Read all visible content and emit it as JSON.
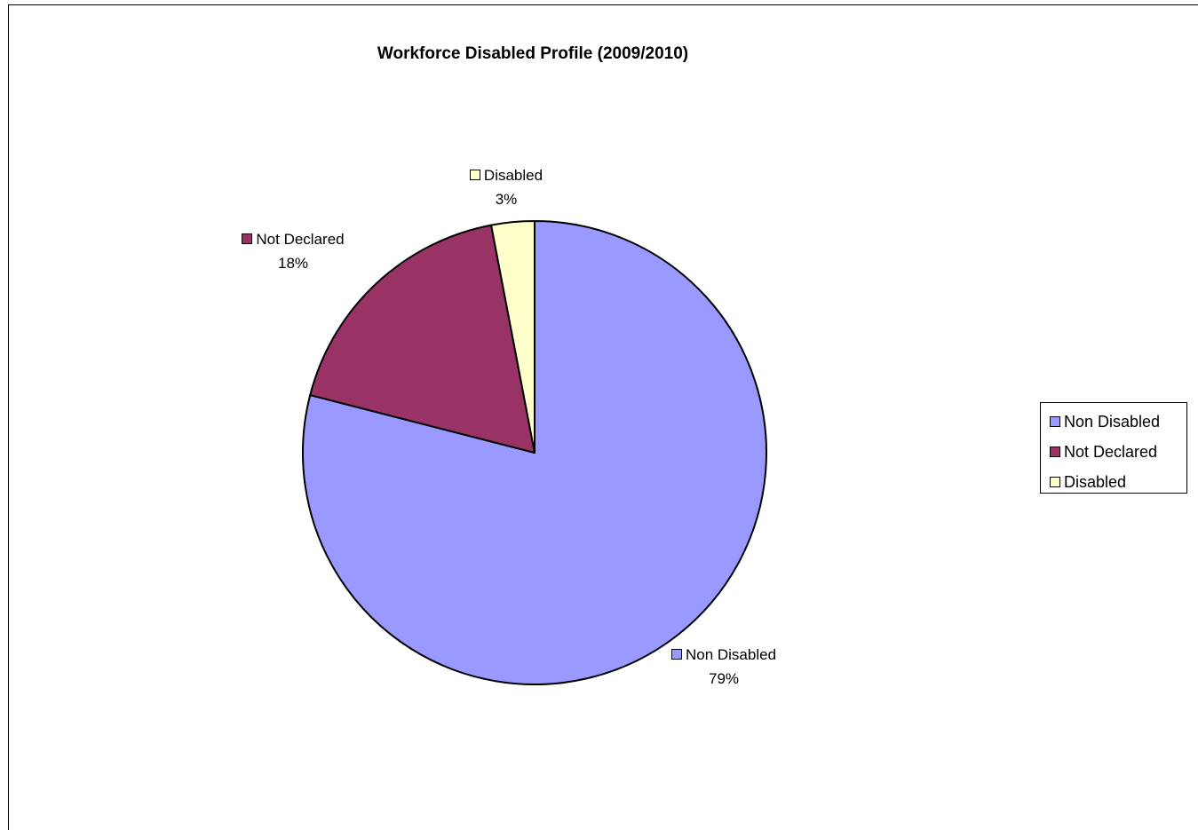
{
  "chart_data": {
    "type": "pie",
    "title": "Workforce Disabled Profile (2009/2010)",
    "categories": [
      "Non Disabled",
      "Not Declared",
      "Disabled"
    ],
    "values": [
      79,
      18,
      3
    ],
    "value_labels": [
      "79%",
      "18%",
      "3%"
    ],
    "colors": [
      "#9999ff",
      "#993366",
      "#ffffcc"
    ],
    "start_angle_deg": 0,
    "direction": "clockwise",
    "legend_position": "right"
  }
}
